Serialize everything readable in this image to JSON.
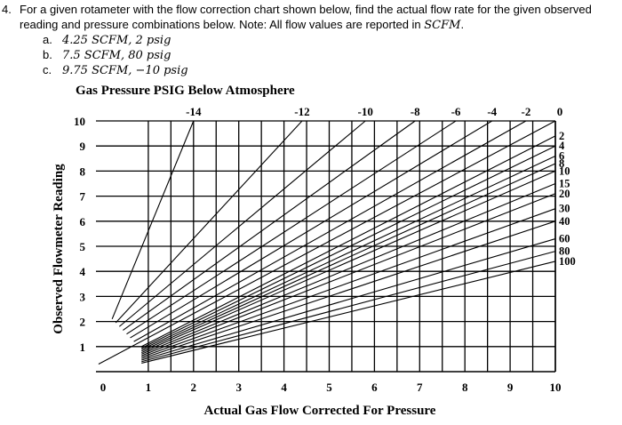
{
  "problem": {
    "number": "4.",
    "line1": "For a given rotameter with the flow correction chart shown below, find the actual flow rate for the given observed",
    "line2_prefix": "reading and pressure combinations below. Note: All flow values are reported in ",
    "line2_unit": "SCFM",
    "line2_suffix": ".",
    "items": [
      {
        "label": "a.",
        "value": "4.25 SCFM, 2 psig"
      },
      {
        "label": "b.",
        "value": "7.5 SCFM, 80 psig"
      },
      {
        "label": "c.",
        "value": "9.75 SCFM, −10 psig"
      }
    ]
  },
  "chart_data": {
    "type": "line",
    "title": "Gas Pressure PSIG Below Atmosphere",
    "xlabel": "Actual Gas Flow Corrected For Pressure",
    "ylabel": "Observed Flowmeter Reading",
    "xlim": [
      0,
      10
    ],
    "ylim": [
      0,
      10
    ],
    "x_ticks": [
      "0",
      "1",
      "2",
      "3",
      "4",
      "5",
      "6",
      "7",
      "8",
      "9",
      "10"
    ],
    "y_ticks": [
      "1",
      "2",
      "3",
      "4",
      "5",
      "6",
      "7",
      "8",
      "9",
      "10"
    ],
    "top_ticks": [
      "-14",
      "-12",
      "-10",
      "-8",
      "-6",
      "-4",
      "-2",
      "0"
    ],
    "right_ticks": [
      "2",
      "4",
      "6",
      "8",
      "10",
      "15",
      "20",
      "30",
      "40",
      "60",
      "80",
      "100"
    ],
    "grid": true,
    "lines_top": [
      {
        "label": "-14",
        "x_at_top": 2.0
      },
      {
        "label": "-12",
        "x_at_top": 4.4
      },
      {
        "label": "-10",
        "x_at_top": 5.8
      },
      {
        "label": "-8",
        "x_at_top": 6.9
      },
      {
        "label": "-6",
        "x_at_top": 7.8
      },
      {
        "label": "-4",
        "x_at_top": 8.6
      },
      {
        "label": "-2",
        "x_at_top": 9.35
      },
      {
        "label": "0",
        "x_at_top": 10.0
      }
    ],
    "lines_right": [
      {
        "label": "2",
        "y_at_right": 9.4
      },
      {
        "label": "4",
        "y_at_right": 9.0
      },
      {
        "label": "6",
        "y_at_right": 8.6
      },
      {
        "label": "8",
        "y_at_right": 8.3
      },
      {
        "label": "10",
        "y_at_right": 8.0
      },
      {
        "label": "15",
        "y_at_right": 7.5
      },
      {
        "label": "20",
        "y_at_right": 7.1
      },
      {
        "label": "30",
        "y_at_right": 6.5
      },
      {
        "label": "40",
        "y_at_right": 6.0
      },
      {
        "label": "60",
        "y_at_right": 5.3
      },
      {
        "label": "80",
        "y_at_right": 4.8
      },
      {
        "label": "100",
        "y_at_right": 4.4
      }
    ]
  }
}
